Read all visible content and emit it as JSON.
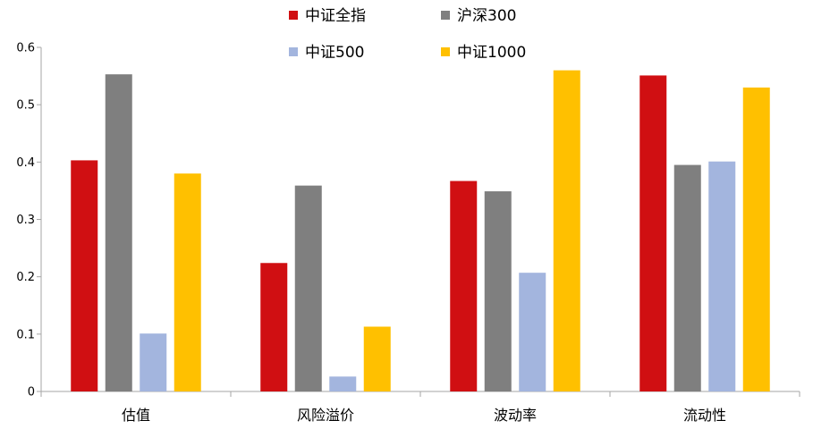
{
  "chart_data": {
    "type": "bar",
    "title": "",
    "xlabel": "",
    "ylabel": "",
    "categories": [
      "估值",
      "风险溢价",
      "波动率",
      "流动性"
    ],
    "series": [
      {
        "name": "中证全指",
        "color": "#d00f12",
        "values": [
          0.403,
          0.224,
          0.367,
          0.551
        ]
      },
      {
        "name": "沪深300",
        "color": "#7f7f7f",
        "values": [
          0.553,
          0.359,
          0.349,
          0.395
        ]
      },
      {
        "name": "中证500",
        "color": "#a3b5de",
        "values": [
          0.101,
          0.026,
          0.207,
          0.401
        ]
      },
      {
        "name": "中证1000",
        "color": "#ffc000",
        "values": [
          0.38,
          0.113,
          0.56,
          0.53
        ]
      }
    ],
    "ylim": [
      0,
      0.6
    ],
    "yticks": [
      0,
      0.1,
      0.2,
      0.3,
      0.4,
      0.5,
      0.6
    ],
    "ytick_labels": [
      "0",
      "0.1",
      "0.2",
      "0.3",
      "0.4",
      "0.5",
      "0.6"
    ],
    "grid": false,
    "legend": "top-center"
  }
}
